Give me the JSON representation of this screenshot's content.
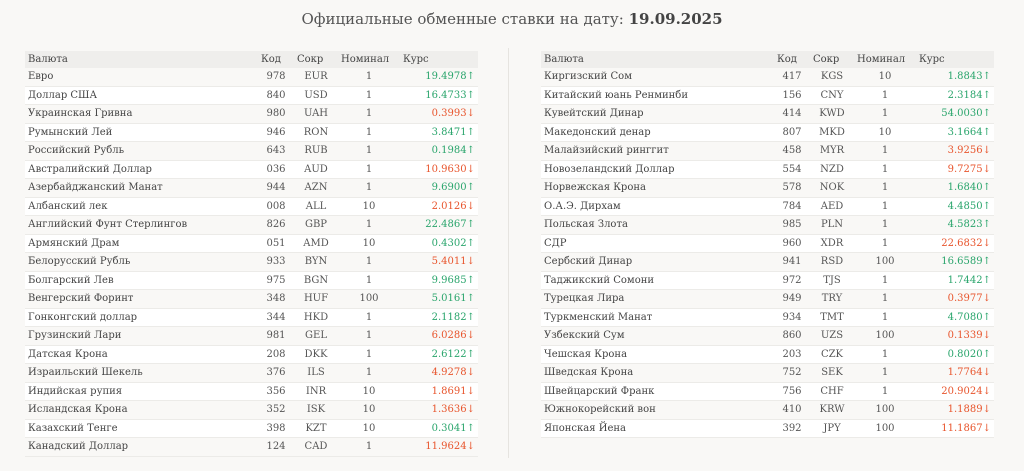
{
  "page": {
    "title_prefix": "Официальные обменные ставки на дату:",
    "date": "19.09.2025",
    "colors": {
      "up": "#2aa56c",
      "down": "#e8552d"
    }
  },
  "headers": {
    "name": "Валюта",
    "code": "Код",
    "short": "Сокр",
    "nominal": "Номинал",
    "rate": "Курс"
  },
  "left_rows": [
    {
      "name": "Евро",
      "code": "978",
      "short": "EUR",
      "nominal": "1",
      "rate": "19.4978",
      "dir": "up"
    },
    {
      "name": "Доллар США",
      "code": "840",
      "short": "USD",
      "nominal": "1",
      "rate": "16.4733",
      "dir": "up"
    },
    {
      "name": "Украинская Гривна",
      "code": "980",
      "short": "UAH",
      "nominal": "1",
      "rate": "0.3993",
      "dir": "down"
    },
    {
      "name": "Румынский Лей",
      "code": "946",
      "short": "RON",
      "nominal": "1",
      "rate": "3.8471",
      "dir": "up"
    },
    {
      "name": "Российский Рубль",
      "code": "643",
      "short": "RUB",
      "nominal": "1",
      "rate": "0.1984",
      "dir": "up"
    },
    {
      "name": "Австралийский Доллар",
      "code": "036",
      "short": "AUD",
      "nominal": "1",
      "rate": "10.9630",
      "dir": "down"
    },
    {
      "name": "Азербайджанский Манат",
      "code": "944",
      "short": "AZN",
      "nominal": "1",
      "rate": "9.6900",
      "dir": "up"
    },
    {
      "name": "Албанский лек",
      "code": "008",
      "short": "ALL",
      "nominal": "10",
      "rate": "2.0126",
      "dir": "down"
    },
    {
      "name": "Английский Фунт Стерлингов",
      "code": "826",
      "short": "GBP",
      "nominal": "1",
      "rate": "22.4867",
      "dir": "up"
    },
    {
      "name": "Армянский Драм",
      "code": "051",
      "short": "AMD",
      "nominal": "10",
      "rate": "0.4302",
      "dir": "up"
    },
    {
      "name": "Белорусский Рубль",
      "code": "933",
      "short": "BYN",
      "nominal": "1",
      "rate": "5.4011",
      "dir": "down"
    },
    {
      "name": "Болгарский Лев",
      "code": "975",
      "short": "BGN",
      "nominal": "1",
      "rate": "9.9685",
      "dir": "up"
    },
    {
      "name": "Венгерский Форинт",
      "code": "348",
      "short": "HUF",
      "nominal": "100",
      "rate": "5.0161",
      "dir": "up"
    },
    {
      "name": "Гонконгский доллар",
      "code": "344",
      "short": "HKD",
      "nominal": "1",
      "rate": "2.1182",
      "dir": "up"
    },
    {
      "name": "Грузинский Лари",
      "code": "981",
      "short": "GEL",
      "nominal": "1",
      "rate": "6.0286",
      "dir": "down"
    },
    {
      "name": "Датская Крона",
      "code": "208",
      "short": "DKK",
      "nominal": "1",
      "rate": "2.6122",
      "dir": "up"
    },
    {
      "name": "Израильский Шекель",
      "code": "376",
      "short": "ILS",
      "nominal": "1",
      "rate": "4.9278",
      "dir": "down"
    },
    {
      "name": "Индийская рупия",
      "code": "356",
      "short": "INR",
      "nominal": "10",
      "rate": "1.8691",
      "dir": "down"
    },
    {
      "name": "Исландская Крона",
      "code": "352",
      "short": "ISK",
      "nominal": "10",
      "rate": "1.3636",
      "dir": "down"
    },
    {
      "name": "Казахский Тенге",
      "code": "398",
      "short": "KZT",
      "nominal": "10",
      "rate": "0.3041",
      "dir": "up"
    },
    {
      "name": "Канадский Доллар",
      "code": "124",
      "short": "CAD",
      "nominal": "1",
      "rate": "11.9624",
      "dir": "down"
    }
  ],
  "right_rows": [
    {
      "name": "Киргизский Сом",
      "code": "417",
      "short": "KGS",
      "nominal": "10",
      "rate": "1.8843",
      "dir": "up"
    },
    {
      "name": "Китайский юань Ренминби",
      "code": "156",
      "short": "CNY",
      "nominal": "1",
      "rate": "2.3184",
      "dir": "up"
    },
    {
      "name": "Кувейтский Динар",
      "code": "414",
      "short": "KWD",
      "nominal": "1",
      "rate": "54.0030",
      "dir": "up"
    },
    {
      "name": "Македонский денар",
      "code": "807",
      "short": "MKD",
      "nominal": "10",
      "rate": "3.1664",
      "dir": "up"
    },
    {
      "name": "Малайзийский ринггит",
      "code": "458",
      "short": "MYR",
      "nominal": "1",
      "rate": "3.9256",
      "dir": "down"
    },
    {
      "name": "Новозеландский Доллар",
      "code": "554",
      "short": "NZD",
      "nominal": "1",
      "rate": "9.7275",
      "dir": "down"
    },
    {
      "name": "Норвежская Крона",
      "code": "578",
      "short": "NOK",
      "nominal": "1",
      "rate": "1.6840",
      "dir": "up"
    },
    {
      "name": "О.А.Э. Дирхам",
      "code": "784",
      "short": "AED",
      "nominal": "1",
      "rate": "4.4850",
      "dir": "up"
    },
    {
      "name": "Польская Злота",
      "code": "985",
      "short": "PLN",
      "nominal": "1",
      "rate": "4.5823",
      "dir": "up"
    },
    {
      "name": "СДР",
      "code": "960",
      "short": "XDR",
      "nominal": "1",
      "rate": "22.6832",
      "dir": "down"
    },
    {
      "name": "Сербский Динар",
      "code": "941",
      "short": "RSD",
      "nominal": "100",
      "rate": "16.6589",
      "dir": "up"
    },
    {
      "name": "Таджикский Сомони",
      "code": "972",
      "short": "TJS",
      "nominal": "1",
      "rate": "1.7442",
      "dir": "up"
    },
    {
      "name": "Турецкая Лира",
      "code": "949",
      "short": "TRY",
      "nominal": "1",
      "rate": "0.3977",
      "dir": "down"
    },
    {
      "name": "Туркменский Манат",
      "code": "934",
      "short": "TMT",
      "nominal": "1",
      "rate": "4.7080",
      "dir": "up"
    },
    {
      "name": "Узбекский Сум",
      "code": "860",
      "short": "UZS",
      "nominal": "100",
      "rate": "0.1339",
      "dir": "down"
    },
    {
      "name": "Чешская Крона",
      "code": "203",
      "short": "CZK",
      "nominal": "1",
      "rate": "0.8020",
      "dir": "up"
    },
    {
      "name": "Шведская Крона",
      "code": "752",
      "short": "SEK",
      "nominal": "1",
      "rate": "1.7764",
      "dir": "down"
    },
    {
      "name": "Швейцарский Франк",
      "code": "756",
      "short": "CHF",
      "nominal": "1",
      "rate": "20.9024",
      "dir": "down"
    },
    {
      "name": "Южнокорейский вон",
      "code": "410",
      "short": "KRW",
      "nominal": "100",
      "rate": "1.1889",
      "dir": "down"
    },
    {
      "name": "Японская Йена",
      "code": "392",
      "short": "JPY",
      "nominal": "100",
      "rate": "11.1867",
      "dir": "down"
    }
  ]
}
